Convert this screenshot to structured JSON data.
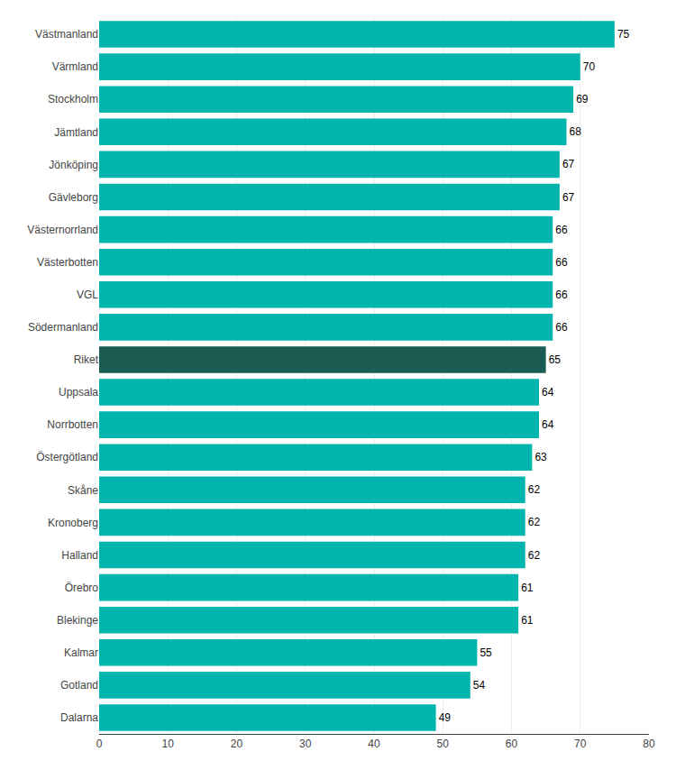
{
  "chart_data": {
    "type": "bar",
    "orientation": "horizontal",
    "categories": [
      "Dalarna",
      "Gotland",
      "Kalmar",
      "Blekinge",
      "Örebro",
      "Halland",
      "Kronoberg",
      "Skåne",
      "Östergötland",
      "Norrbotten",
      "Uppsala",
      "Riket",
      "Södermanland",
      "VGL",
      "Västerbotten",
      "Västernorrland",
      "Gävleborg",
      "Jönköping",
      "Jämtland",
      "Stockholm",
      "Värmland",
      "Västmanland"
    ],
    "values": [
      49,
      54,
      55,
      61,
      61,
      62,
      62,
      62,
      63,
      64,
      64,
      65,
      66,
      66,
      66,
      66,
      67,
      67,
      68,
      69,
      70,
      75
    ],
    "colors": [
      "#00b5ad",
      "#00b5ad",
      "#00b5ad",
      "#00b5ad",
      "#00b5ad",
      "#00b5ad",
      "#00b5ad",
      "#00b5ad",
      "#00b5ad",
      "#00b5ad",
      "#00b5ad",
      "#1a5c52",
      "#00b5ad",
      "#00b5ad",
      "#00b5ad",
      "#00b5ad",
      "#00b5ad",
      "#00b5ad",
      "#00b5ad",
      "#00b5ad",
      "#00b5ad",
      "#00b5ad"
    ],
    "xlim": [
      0,
      80
    ],
    "xticks": [
      0,
      10,
      20,
      30,
      40,
      50,
      60,
      70,
      80
    ],
    "grid": true,
    "data_labels": true
  }
}
